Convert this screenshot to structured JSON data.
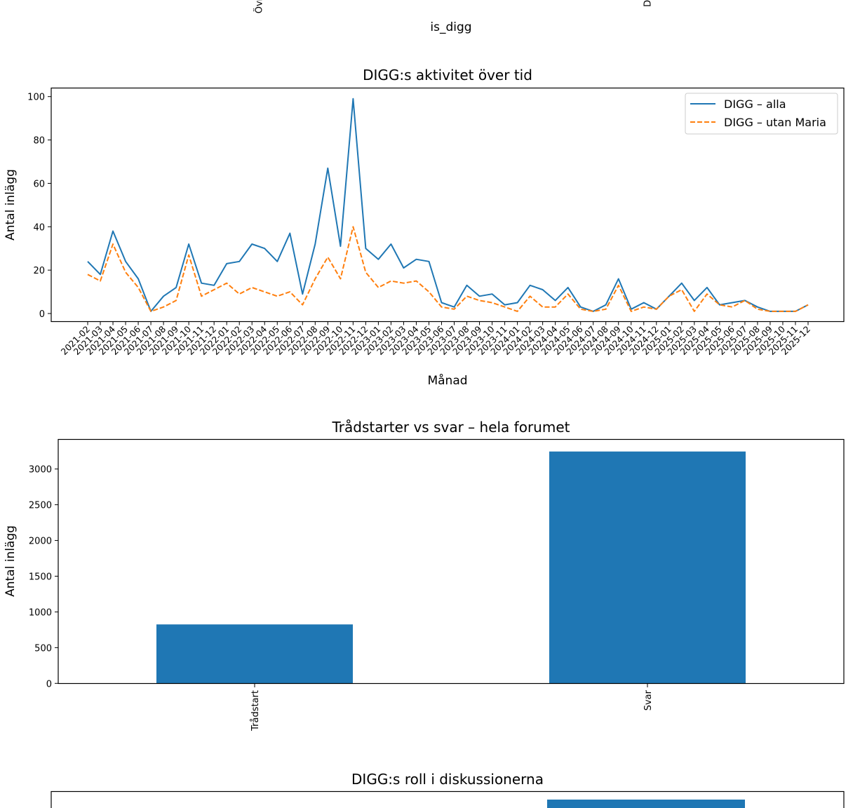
{
  "chart_data": [
    {
      "type": "bar",
      "partial": "bottom-edge-only",
      "xlabel": "is_digg",
      "tick_labels_visible": [
        "Övr",
        "DI"
      ]
    },
    {
      "type": "line",
      "title": "DIGG:s aktivitet över tid",
      "xlabel": "Månad",
      "ylabel": "Antal inlägg",
      "ylim": [
        -4,
        104
      ],
      "yticks": [
        0,
        20,
        40,
        60,
        80,
        100
      ],
      "legend_position": "top-right",
      "categories": [
        "2021-02",
        "2021-03",
        "2021-04",
        "2021-05",
        "2021-06",
        "2021-07",
        "2021-08",
        "2021-09",
        "2021-10",
        "2021-11",
        "2021-12",
        "2022-01",
        "2022-02",
        "2022-03",
        "2022-04",
        "2022-05",
        "2022-06",
        "2022-07",
        "2022-08",
        "2022-09",
        "2022-10",
        "2022-11",
        "2022-12",
        "2023-01",
        "2023-02",
        "2023-03",
        "2023-04",
        "2023-05",
        "2023-06",
        "2023-07",
        "2023-08",
        "2023-09",
        "2023-10",
        "2023-11",
        "2024-01",
        "2024-02",
        "2024-03",
        "2024-04",
        "2024-05",
        "2024-06",
        "2024-07",
        "2024-08",
        "2024-09",
        "2024-10",
        "2024-11",
        "2024-12",
        "2025-01",
        "2025-02",
        "2025-03",
        "2025-04",
        "2025-05",
        "2025-06",
        "2025-07",
        "2025-08",
        "2025-09",
        "2025-10",
        "2025-11",
        "2025-12"
      ],
      "series": [
        {
          "name": "DIGG – alla",
          "color": "#1f77b4",
          "style": "solid",
          "values": [
            24,
            18,
            38,
            24,
            16,
            1,
            8,
            12,
            32,
            14,
            13,
            23,
            24,
            32,
            30,
            24,
            37,
            9,
            32,
            67,
            31,
            99,
            30,
            25,
            32,
            21,
            25,
            24,
            5,
            3,
            13,
            8,
            9,
            4,
            5,
            13,
            11,
            6,
            12,
            3,
            1,
            4,
            16,
            2,
            5,
            2,
            8,
            14,
            6,
            12,
            4,
            5,
            6,
            3,
            1,
            1,
            1,
            4
          ]
        },
        {
          "name": "DIGG – utan Maria",
          "color": "#ff7f0e",
          "style": "dashed",
          "values": [
            18,
            15,
            32,
            19,
            12,
            1,
            3,
            6,
            27,
            8,
            11,
            14,
            9,
            12,
            10,
            8,
            10,
            4,
            16,
            26,
            16,
            40,
            19,
            12,
            15,
            14,
            15,
            10,
            3,
            2,
            8,
            6,
            5,
            3,
            1,
            8,
            3,
            3,
            9,
            2,
            1,
            2,
            13,
            1,
            3,
            2,
            8,
            11,
            1,
            9,
            4,
            3,
            6,
            2,
            1,
            1,
            1,
            4
          ]
        }
      ]
    },
    {
      "type": "bar",
      "title": "Trådstarter vs svar – hela forumet",
      "xlabel": "",
      "ylabel": "Antal inlägg",
      "ylim": [
        0,
        3415
      ],
      "yticks": [
        0,
        500,
        1000,
        1500,
        2000,
        2500,
        3000
      ],
      "categories": [
        "Trådstart",
        "Svar"
      ],
      "values": [
        825,
        3245
      ],
      "color": "#1f77b4"
    },
    {
      "type": "bar",
      "title": "DIGG:s roll i diskussionerna",
      "partial": "top-edge-only",
      "color": "#1f77b4"
    }
  ]
}
